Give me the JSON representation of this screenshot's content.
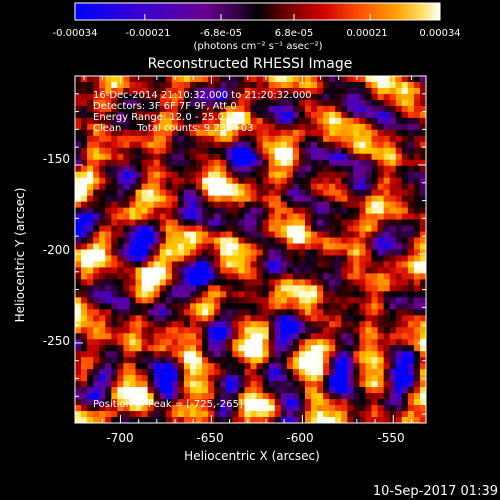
{
  "colorbar": {
    "ticks": [
      "-0.00034",
      "-0.00021",
      "-6.8e-05",
      "6.8e-05",
      "0.00021",
      "0.00034"
    ],
    "tick_values": [
      -0.00034,
      -0.00021,
      -6.8e-05,
      6.8e-05,
      0.00021,
      0.00034
    ],
    "range": [
      -0.00034,
      0.00034
    ],
    "units": "(photons cm⁻² s⁻¹ asec⁻²)",
    "colormap": [
      "#0000ff",
      "#3a00d0",
      "#6a0090",
      "#300040",
      "#000000",
      "#5a0000",
      "#c00000",
      "#ff4000",
      "#ff9000",
      "#ffd000",
      "#ffffe0",
      "#ffffff"
    ]
  },
  "info": {
    "line1": "16-Dec-2014 21:10:32.000 to 21:20:32.000",
    "line2": "Detectors: 3F 6F 7F 9F, Att 0",
    "line3": "Energy Range: 12.0 - 25.0 keV",
    "line4": "Clean     Total counts: 9.23E+03",
    "peak": "Position of Peak = [-725,-265]"
  },
  "footer": {
    "timestamp": "10-Sep-2017 01:39"
  },
  "chart_data": {
    "type": "heatmap",
    "title": "Reconstructed RHESSI Image",
    "xlabel": "Heliocentric X (arcsec)",
    "ylabel": "Heliocentric Y (arcsec)",
    "xlim": [
      -725,
      -532
    ],
    "ylim": [
      -295,
      -100
    ],
    "xticks": [
      -700,
      -650,
      -600,
      -550
    ],
    "yticks": [
      -150,
      -200,
      -250
    ],
    "peak": [
      -725,
      -265
    ],
    "grid": false,
    "value_range": [
      -0.00034,
      0.00034
    ]
  }
}
